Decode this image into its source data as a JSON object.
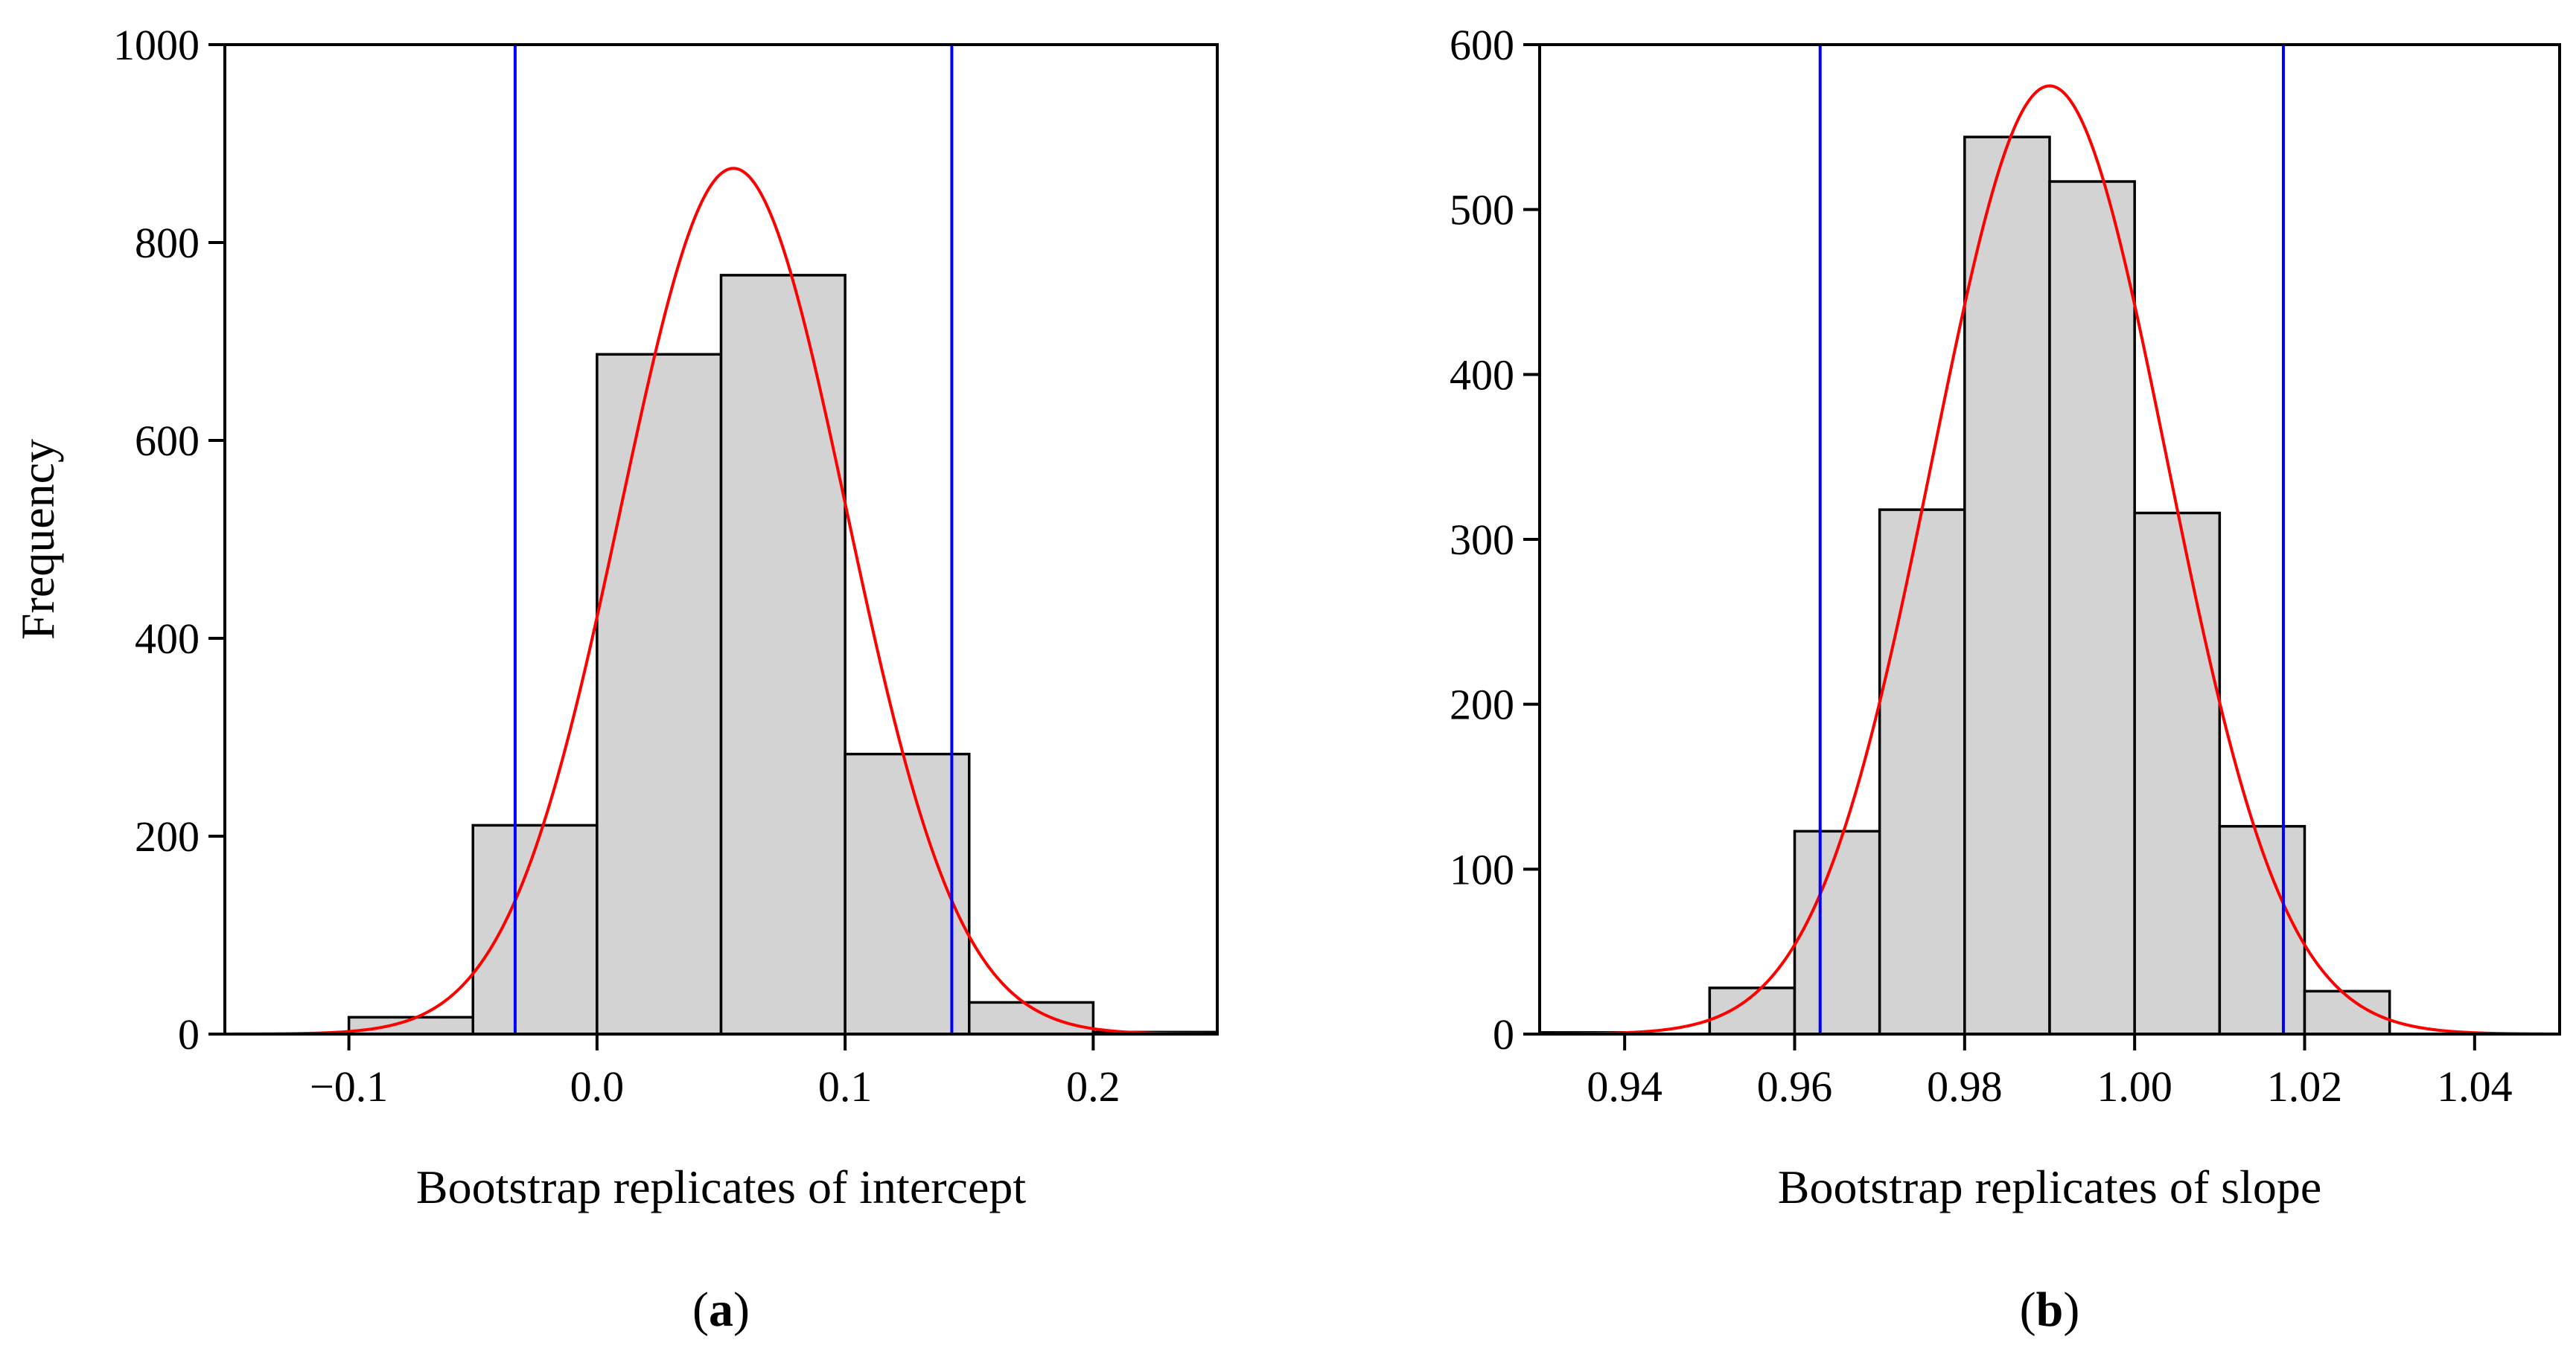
{
  "colors": {
    "bar_fill": "#d3d3d3",
    "bar_stroke": "#000000",
    "density_curve": "#ff0000",
    "ci_lines": "#0000ff",
    "background": "#ffffff"
  },
  "chart_data": [
    {
      "id": "a",
      "type": "bar",
      "panel_label": "a",
      "xlabel": "Bootstrap replicates of intercept",
      "ylabel": "Frequency",
      "xlim": [
        -0.15,
        0.25
      ],
      "ylim": [
        0,
        1000
      ],
      "x_ticks": [
        -0.1,
        0.0,
        0.1,
        0.2
      ],
      "x_tick_labels": [
        "−0.1",
        "0.0",
        "0.1",
        "0.2"
      ],
      "y_ticks": [
        0,
        200,
        400,
        600,
        800,
        1000
      ],
      "y_tick_labels": [
        "0",
        "200",
        "400",
        "600",
        "800",
        "1000"
      ],
      "bins": [
        {
          "x0": -0.15,
          "x1": -0.1,
          "value": 0
        },
        {
          "x0": -0.1,
          "x1": -0.05,
          "value": 17
        },
        {
          "x0": -0.05,
          "x1": 0.0,
          "value": 211
        },
        {
          "x0": 0.0,
          "x1": 0.05,
          "value": 687
        },
        {
          "x0": 0.05,
          "x1": 0.1,
          "value": 767
        },
        {
          "x0": 0.1,
          "x1": 0.15,
          "value": 283
        },
        {
          "x0": 0.15,
          "x1": 0.2,
          "value": 32
        },
        {
          "x0": 0.2,
          "x1": 0.25,
          "value": 2
        }
      ],
      "density_curve": {
        "mean": 0.055,
        "sd": 0.0455,
        "peak": 875
      },
      "vertical_lines": [
        -0.033,
        0.143
      ],
      "grid": false,
      "legend": "none"
    },
    {
      "id": "b",
      "type": "bar",
      "panel_label": "b",
      "xlabel": "Bootstrap replicates of slope",
      "ylabel": "",
      "xlim": [
        0.93,
        1.05
      ],
      "ylim": [
        0,
        600
      ],
      "x_ticks": [
        0.94,
        0.96,
        0.98,
        1.0,
        1.02,
        1.04
      ],
      "x_tick_labels": [
        "0.94",
        "0.96",
        "0.98",
        "1.00",
        "1.02",
        "1.04"
      ],
      "y_ticks": [
        0,
        100,
        200,
        300,
        400,
        500,
        600
      ],
      "y_tick_labels": [
        "0",
        "100",
        "200",
        "300",
        "400",
        "500",
        "600"
      ],
      "bins": [
        {
          "x0": 0.93,
          "x1": 0.94,
          "value": 1
        },
        {
          "x0": 0.95,
          "x1": 0.96,
          "value": 28
        },
        {
          "x0": 0.96,
          "x1": 0.97,
          "value": 123
        },
        {
          "x0": 0.97,
          "x1": 0.98,
          "value": 318
        },
        {
          "x0": 0.98,
          "x1": 0.99,
          "value": 544
        },
        {
          "x0": 0.99,
          "x1": 1.0,
          "value": 517
        },
        {
          "x0": 1.0,
          "x1": 1.01,
          "value": 316
        },
        {
          "x0": 1.01,
          "x1": 1.02,
          "value": 126
        },
        {
          "x0": 1.02,
          "x1": 1.03,
          "value": 26
        }
      ],
      "density_curve": {
        "mean": 0.99,
        "sd": 0.0138,
        "peak": 575
      },
      "vertical_lines": [
        0.963,
        1.0175
      ],
      "grid": false,
      "legend": "none"
    }
  ]
}
